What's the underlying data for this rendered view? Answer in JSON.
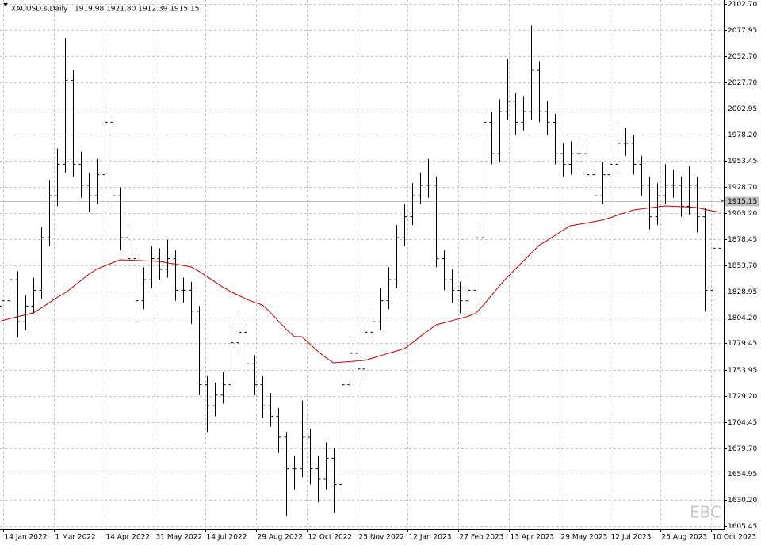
{
  "chart_data": {
    "type": "ohlc",
    "title": "XAUUSD.s,Daily",
    "header_values": "1919.98 1921.80 1912.39 1915.15",
    "watermark": "EBC",
    "current_price": 1915.15,
    "grid": true,
    "color": "#000000",
    "ma_color": "#c00000",
    "xlim": [
      -1,
      457
    ],
    "ylim": [
      1602.4,
      2106.5
    ],
    "yticks": [
      {
        "value": 2102.7,
        "label": "2102.70"
      },
      2077.95,
      {
        "value": 2052.7,
        "label": "2052.70"
      },
      {
        "value": 2027.7,
        "label": "2027.70"
      },
      2002.95,
      {
        "value": 1978.2,
        "label": "1978.20"
      },
      1953.45,
      {
        "value": 1928.7,
        "label": "1928.70"
      },
      {
        "value": 1903.2,
        "label": "1903.20"
      },
      1878.45,
      {
        "value": 1853.7,
        "label": "1853.70"
      },
      1828.95,
      {
        "value": 1804.2,
        "label": "1804.20"
      },
      1779.45,
      1753.95,
      {
        "value": 1729.2,
        "label": "1729.20"
      },
      1704.45,
      {
        "value": 1679.7,
        "label": "1679.70"
      },
      1654.95,
      {
        "value": 1630.2,
        "label": "1630.20"
      },
      1605.45
    ],
    "xticks": [
      {
        "value": 1,
        "label": "14 Jan 2022"
      },
      {
        "value": 33,
        "label": "1 Mar 2022"
      },
      {
        "value": 65,
        "label": "14 Apr 2022"
      },
      {
        "value": 97,
        "label": "31 May 2022"
      },
      {
        "value": 129,
        "label": "14 Jul 2022"
      },
      {
        "value": 161,
        "label": "29 Aug 2022"
      },
      {
        "value": 193,
        "label": "12 Oct 2022"
      },
      {
        "value": 225,
        "label": "25 Nov 2022"
      },
      {
        "value": 257,
        "label": "12 Jan 2023"
      },
      {
        "value": 289,
        "label": "27 Feb 2023"
      },
      {
        "value": 321,
        "label": "13 Apr 2023"
      },
      {
        "value": 353,
        "label": "29 May 2023"
      },
      {
        "value": 385,
        "label": "12 Jul 2023"
      },
      {
        "value": 417,
        "label": "25 Aug 2023"
      },
      {
        "value": 449,
        "label": "10 Oct 2023"
      }
    ],
    "x": [
      0,
      5,
      10,
      15,
      20,
      25,
      30,
      35,
      40,
      45,
      50,
      55,
      60,
      65,
      70,
      75,
      80,
      85,
      90,
      95,
      100,
      105,
      110,
      115,
      120,
      125,
      130,
      135,
      140,
      145,
      150,
      155,
      160,
      165,
      170,
      175,
      180,
      185,
      190,
      195,
      200,
      205,
      210,
      215,
      220,
      225,
      230,
      235,
      240,
      245,
      250,
      255,
      260,
      265,
      270,
      275,
      280,
      285,
      290,
      295,
      300,
      305,
      310,
      315,
      320,
      325,
      330,
      335,
      340,
      345,
      350,
      355,
      360,
      365,
      370,
      375,
      380,
      385,
      390,
      395,
      400,
      405,
      410,
      415,
      420,
      425,
      430,
      435,
      440,
      445,
      450,
      455
    ],
    "open": [
      1815,
      1820,
      1840,
      1800,
      1815,
      1830,
      1880,
      1920,
      1950,
      2030,
      1950,
      1930,
      1920,
      1940,
      1990,
      1920,
      1880,
      1860,
      1820,
      1840,
      1860,
      1850,
      1860,
      1830,
      1830,
      1810,
      1740,
      1720,
      1730,
      1740,
      1780,
      1790,
      1760,
      1740,
      1720,
      1710,
      1690,
      1660,
      1660,
      1690,
      1660,
      1650,
      1670,
      1645,
      1740,
      1770,
      1755,
      1790,
      1800,
      1820,
      1840,
      1880,
      1900,
      1920,
      1930,
      1930,
      1860,
      1840,
      1830,
      1820,
      1830,
      1880,
      1990,
      1960,
      2000,
      2010,
      1990,
      2000,
      2040,
      2000,
      1990,
      1960,
      1950,
      1960,
      1960,
      1940,
      1920,
      1940,
      1950,
      1970,
      1970,
      1950,
      1930,
      1900,
      1920,
      1930,
      1930,
      1910,
      1930,
      1900,
      1830,
      1870
    ],
    "high": [
      1835,
      1855,
      1848,
      1825,
      1842,
      1890,
      1935,
      1965,
      2070,
      2040,
      1962,
      1942,
      1955,
      2005,
      1995,
      1928,
      1890,
      1868,
      1852,
      1872,
      1870,
      1878,
      1868,
      1842,
      1838,
      1815,
      1748,
      1742,
      1752,
      1795,
      1810,
      1798,
      1768,
      1748,
      1732,
      1718,
      1695,
      1672,
      1725,
      1698,
      1672,
      1685,
      1680,
      1750,
      1785,
      1778,
      1800,
      1812,
      1832,
      1852,
      1892,
      1912,
      1932,
      1942,
      1955,
      1938,
      1868,
      1850,
      1838,
      1842,
      1892,
      2000,
      2000,
      2012,
      2050,
      2018,
      2015,
      2082,
      2048,
      2010,
      1998,
      1970,
      1972,
      1975,
      1968,
      1948,
      1952,
      1962,
      1990,
      1985,
      1978,
      1958,
      1938,
      1932,
      1950,
      1945,
      1938,
      1948,
      1938,
      1908,
      1885,
      1932
    ],
    "low": [
      1805,
      1810,
      1785,
      1792,
      1808,
      1822,
      1872,
      1910,
      1942,
      1938,
      1918,
      1905,
      1912,
      1930,
      1910,
      1868,
      1848,
      1800,
      1812,
      1832,
      1840,
      1842,
      1820,
      1818,
      1798,
      1730,
      1695,
      1710,
      1722,
      1735,
      1772,
      1750,
      1730,
      1708,
      1700,
      1675,
      1615,
      1640,
      1652,
      1645,
      1628,
      1640,
      1618,
      1638,
      1732,
      1742,
      1748,
      1782,
      1792,
      1812,
      1832,
      1872,
      1892,
      1912,
      1918,
      1852,
      1830,
      1818,
      1808,
      1810,
      1822,
      1872,
      1950,
      1952,
      1992,
      1978,
      1982,
      1992,
      1990,
      1978,
      1950,
      1938,
      1940,
      1948,
      1930,
      1905,
      1912,
      1932,
      1942,
      1958,
      1940,
      1920,
      1888,
      1892,
      1912,
      1918,
      1900,
      1902,
      1885,
      1810,
      1822,
      1862
    ],
    "close": [
      1820,
      1840,
      1800,
      1815,
      1830,
      1880,
      1920,
      1950,
      2030,
      1950,
      1930,
      1920,
      1940,
      1990,
      1920,
      1880,
      1860,
      1820,
      1840,
      1860,
      1850,
      1860,
      1830,
      1830,
      1810,
      1740,
      1720,
      1730,
      1740,
      1780,
      1790,
      1760,
      1740,
      1720,
      1710,
      1690,
      1660,
      1660,
      1690,
      1660,
      1650,
      1670,
      1645,
      1740,
      1770,
      1755,
      1790,
      1800,
      1820,
      1840,
      1880,
      1900,
      1920,
      1930,
      1930,
      1860,
      1840,
      1830,
      1820,
      1830,
      1880,
      1990,
      1960,
      2000,
      2010,
      1990,
      2000,
      2040,
      2000,
      1990,
      1960,
      1950,
      1960,
      1960,
      1940,
      1920,
      1940,
      1950,
      1970,
      1970,
      1950,
      1930,
      1900,
      1920,
      1930,
      1930,
      1910,
      1930,
      1900,
      1830,
      1870,
      1915
    ],
    "ma": [
      1800.9,
      1802.8,
      1804.7,
      1806.5,
      1808.4,
      1813,
      1818,
      1823,
      1827.3,
      1833,
      1839,
      1845,
      1850,
      1853,
      1856,
      1859,
      1858.7,
      1858.4,
      1858.1,
      1857.8,
      1857.5,
      1856,
      1854.9,
      1853.6,
      1852.2,
      1848,
      1843,
      1838,
      1833,
      1828.8,
      1825,
      1821.5,
      1818.5,
      1816,
      1809,
      1801,
      1793,
      1786,
      1785.8,
      1779,
      1772,
      1766,
      1760.9,
      1761.5,
      1762,
      1762.7,
      1763.2,
      1765.5,
      1767.8,
      1770,
      1772.2,
      1774.5,
      1780,
      1786,
      1791.5,
      1797.1,
      1799,
      1801,
      1803,
      1805,
      1808,
      1816,
      1825,
      1834,
      1842.4,
      1850,
      1857.5,
      1865,
      1872.6,
      1877,
      1882,
      1887,
      1891.4,
      1892.7,
      1894,
      1895.4,
      1896.7,
      1899,
      1901.6,
      1904,
      1906.5,
      1907.5,
      1908.5,
      1909.4,
      1910.3,
      1910,
      1909.6,
      1909.2,
      1908.8,
      1907,
      1905.5,
      1904.3
    ]
  }
}
